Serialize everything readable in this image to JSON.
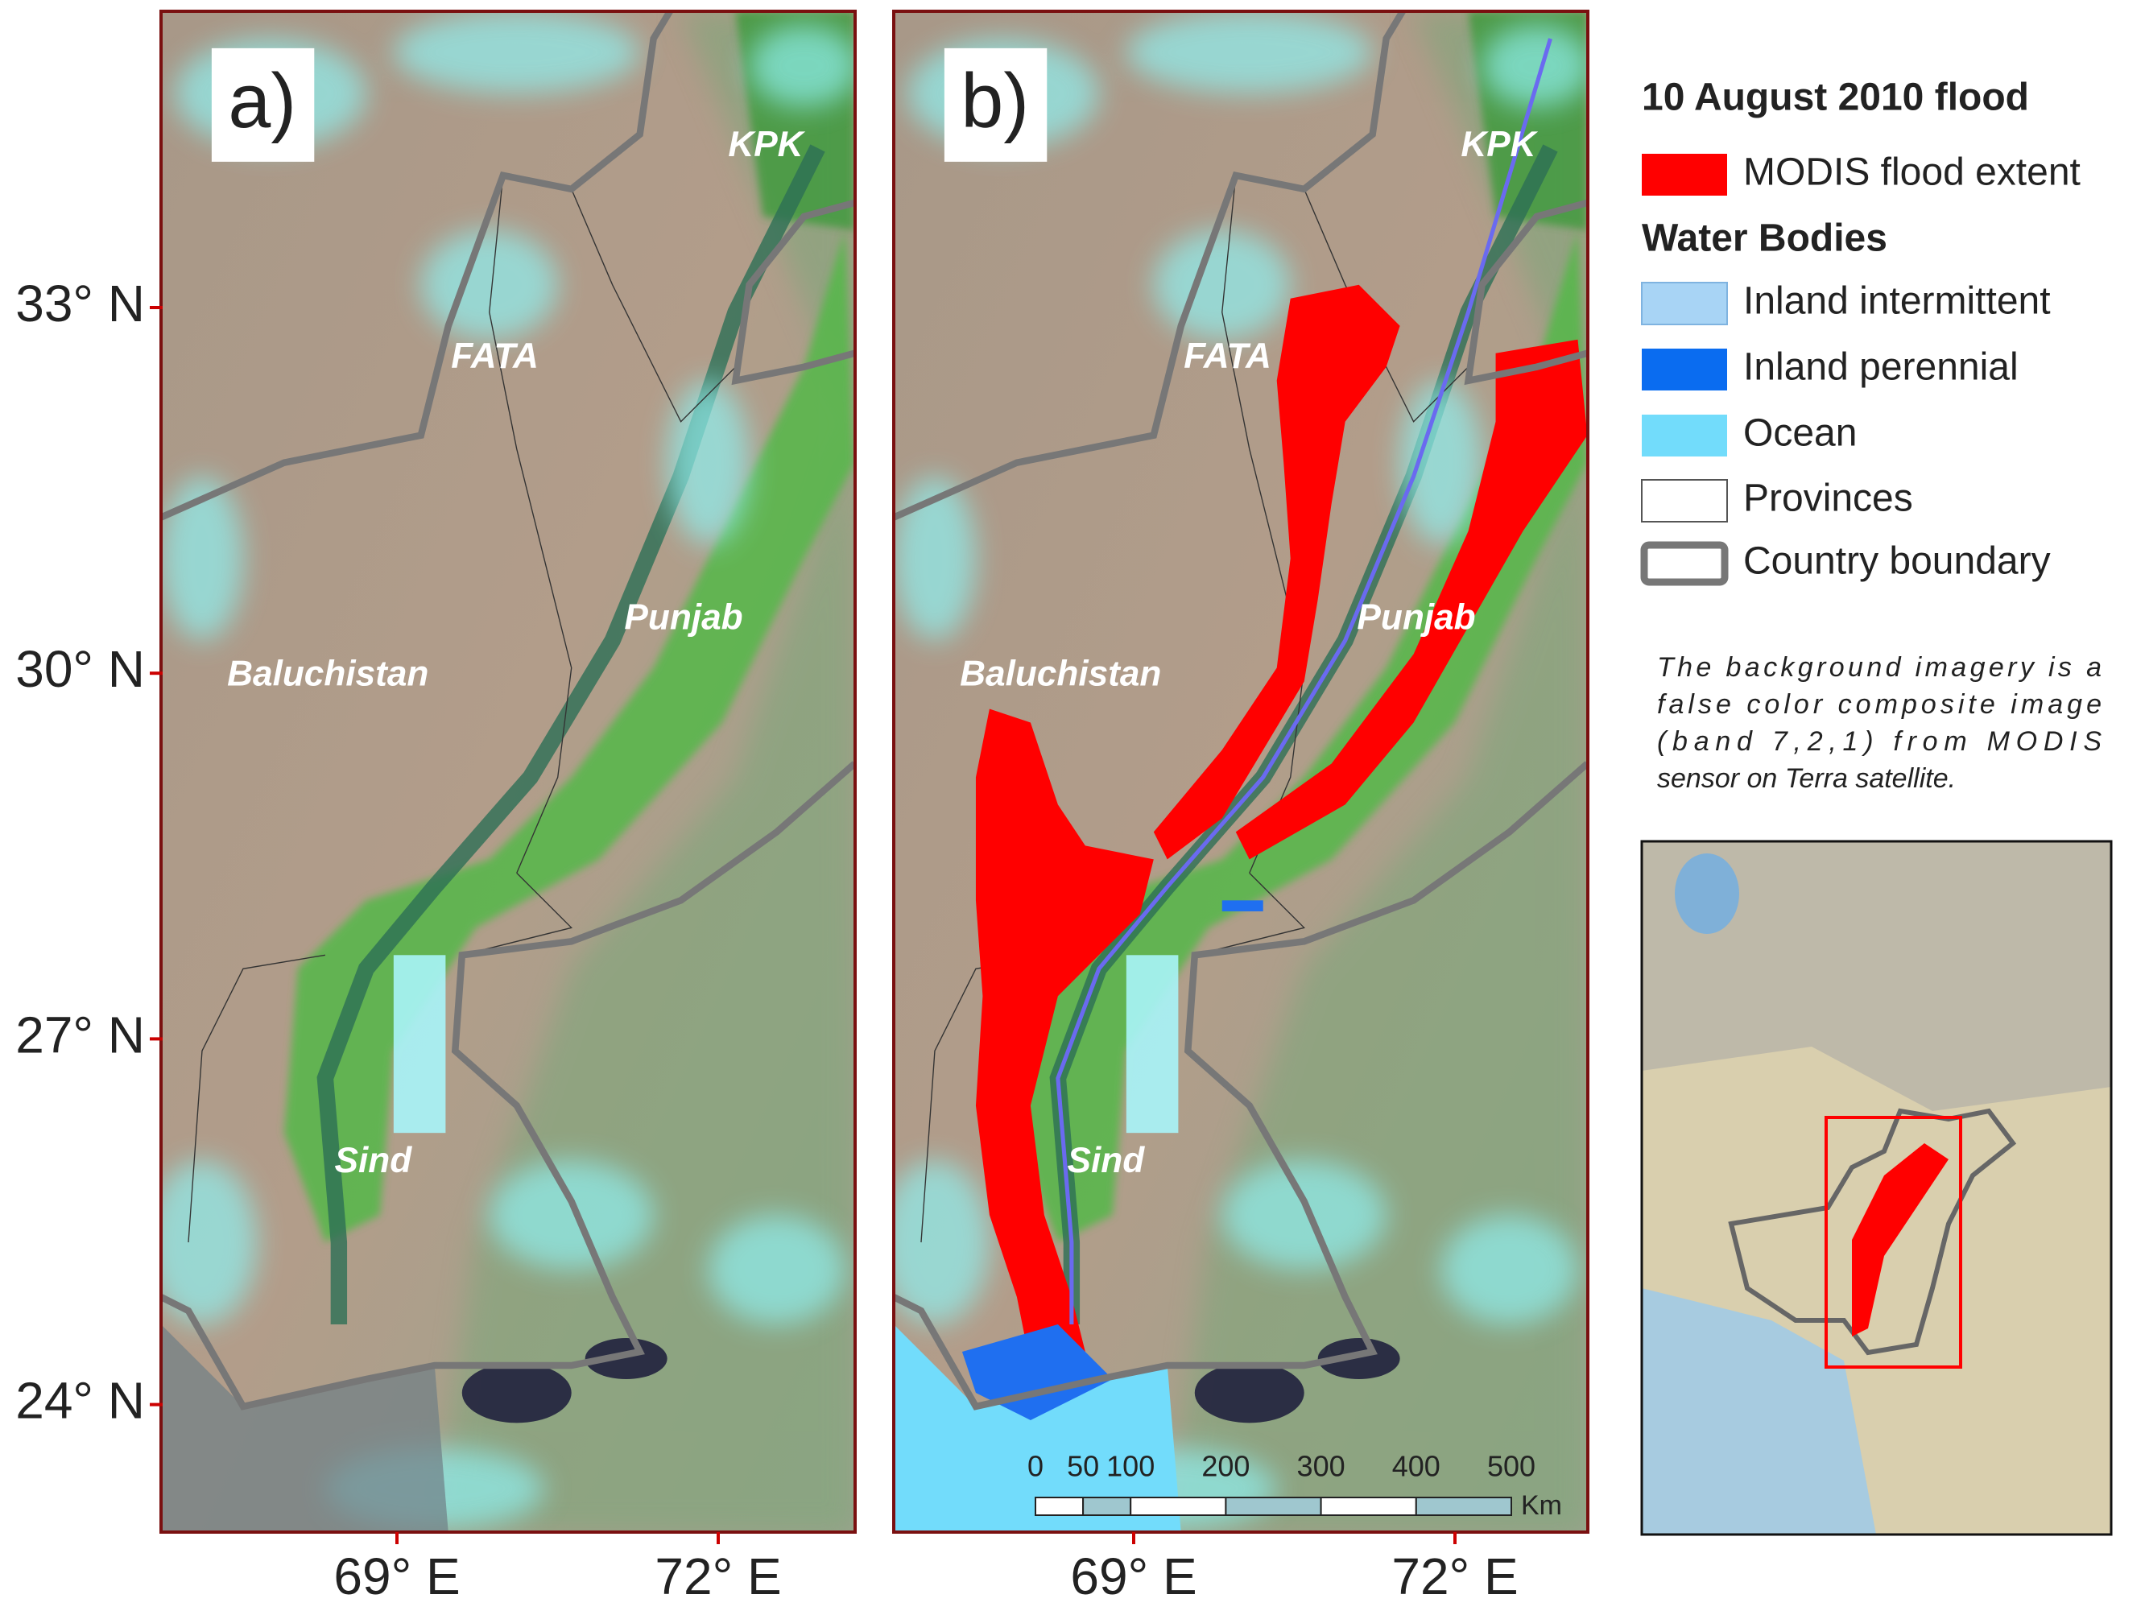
{
  "panels": [
    {
      "label": "a)"
    },
    {
      "label": "b)"
    }
  ],
  "provinces": [
    "KPK",
    "FATA",
    "Punjab",
    "Baluchistan",
    "Sind"
  ],
  "latitude_ticks": [
    {
      "value": 33,
      "label": "33° N"
    },
    {
      "value": 30,
      "label": "30° N"
    },
    {
      "value": 27,
      "label": "27° N"
    },
    {
      "value": 24,
      "label": "24° N"
    }
  ],
  "longitude_ticks": [
    {
      "value": 69,
      "label": "69° E"
    },
    {
      "value": 72,
      "label": "72° E"
    }
  ],
  "legend": {
    "title": "10 August 2010 flood",
    "flood": {
      "label": "MODIS flood extent",
      "color": "#ff0000"
    },
    "subtitle": "Water Bodies",
    "water_bodies": [
      {
        "label": "Inland intermittent",
        "color": "#a8d4f5"
      },
      {
        "label": "Inland perennial",
        "color": "#0a6cf0"
      },
      {
        "label": "Ocean",
        "color": "#72dcfb"
      }
    ],
    "provinces": {
      "label": "Provinces"
    },
    "country": {
      "label": "Country boundary"
    }
  },
  "note": [
    "The background imagery is a",
    "false color composite image",
    "(band 7,2,1)  from MODIS",
    "sensor on Terra satellite."
  ],
  "scale_bar": {
    "ticks": [
      0,
      50,
      100,
      200,
      300,
      400,
      500
    ],
    "unit": "Km"
  }
}
